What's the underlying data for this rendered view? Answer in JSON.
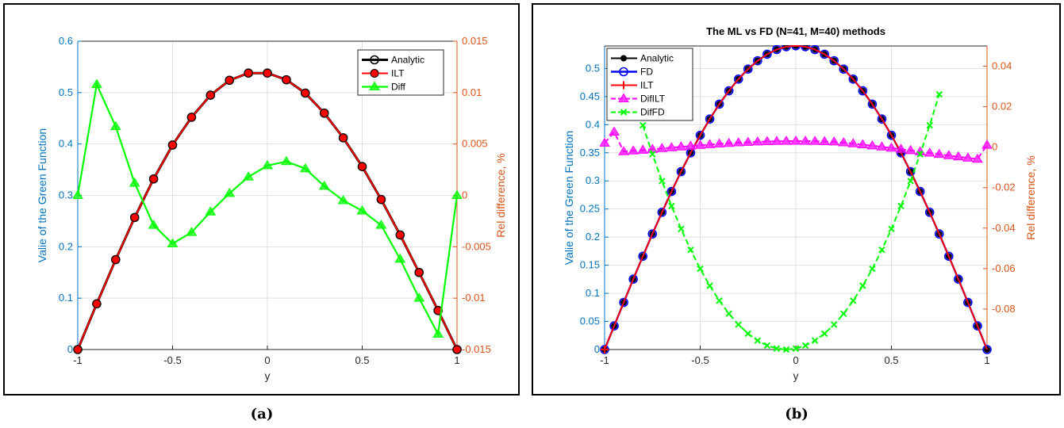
{
  "chart_data": [
    {
      "id": "a",
      "caption": "(a)",
      "type": "line",
      "title": "",
      "xlabel": "y",
      "ylabel": "Valie of the Green Function",
      "ylabel_right": "Rel difference, %",
      "xlim": [
        -1,
        1
      ],
      "ylim": [
        0,
        0.6
      ],
      "ylim_right": [
        -0.015,
        0.015
      ],
      "xticks": [
        "-1",
        "-0.5",
        "0",
        "0.5",
        "1"
      ],
      "yticks": [
        "0",
        "0.1",
        "0.2",
        "0.3",
        "0.4",
        "0.5",
        "0.6"
      ],
      "yticks_right": [
        "-0.015",
        "-0.01",
        "-0.005",
        "0",
        "0.005",
        "0.01",
        "0.015"
      ],
      "grid": true,
      "legend_position": "top-right",
      "colors": {
        "left_axis": "#0072bd",
        "right_axis": "#d95319",
        "analytic": "#000000",
        "ilt": "#ff0000",
        "diff": "#00ff00"
      },
      "series": [
        {
          "name": "Analytic",
          "axis": "left",
          "marker": "circle-open",
          "x": [
            -1,
            -0.9,
            -0.8,
            -0.7,
            -0.6,
            -0.5,
            -0.4,
            -0.3,
            -0.2,
            -0.1,
            0,
            0.1,
            0.2,
            0.3,
            0.4,
            0.5,
            0.6,
            0.7,
            0.8,
            0.9,
            1
          ],
          "y": [
            0,
            0.089,
            0.175,
            0.257,
            0.332,
            0.398,
            0.452,
            0.495,
            0.524,
            0.538,
            0.538,
            0.525,
            0.499,
            0.46,
            0.412,
            0.356,
            0.292,
            0.223,
            0.15,
            0.076,
            0
          ]
        },
        {
          "name": "ILT",
          "axis": "left",
          "marker": "circle-filled",
          "x": [
            -1,
            -0.9,
            -0.8,
            -0.7,
            -0.6,
            -0.5,
            -0.4,
            -0.3,
            -0.2,
            -0.1,
            0,
            0.1,
            0.2,
            0.3,
            0.4,
            0.5,
            0.6,
            0.7,
            0.8,
            0.9,
            1
          ],
          "y": [
            0,
            0.089,
            0.175,
            0.257,
            0.332,
            0.398,
            0.452,
            0.495,
            0.524,
            0.538,
            0.538,
            0.525,
            0.499,
            0.46,
            0.412,
            0.356,
            0.292,
            0.223,
            0.15,
            0.076,
            0
          ]
        },
        {
          "name": "Diff",
          "axis": "right",
          "marker": "triangle",
          "x": [
            -1,
            -0.9,
            -0.8,
            -0.7,
            -0.6,
            -0.5,
            -0.4,
            -0.3,
            -0.2,
            -0.1,
            0,
            0.1,
            0.2,
            0.3,
            0.4,
            0.5,
            0.6,
            0.7,
            0.8,
            0.9,
            1
          ],
          "y": [
            0,
            0.0108,
            0.0067,
            0.0012,
            -0.0029,
            -0.0047,
            -0.0036,
            -0.0016,
            0.0002,
            0.0018,
            0.0029,
            0.0033,
            0.0026,
            0.0009,
            -0.0005,
            -0.0015,
            -0.0029,
            -0.0062,
            -0.01,
            -0.0135,
            0
          ]
        }
      ]
    },
    {
      "id": "b",
      "caption": "(b)",
      "type": "line",
      "title": "The ML vs FD (N=41, M=40) methods",
      "xlabel": "y",
      "ylabel": "Valie of the Green Function",
      "ylabel_right": "Rel difference, %",
      "xlim": [
        -1,
        1
      ],
      "ylim": [
        0,
        0.54
      ],
      "ylim_right": [
        -0.1,
        0.05
      ],
      "xticks": [
        "-1",
        "-0.5",
        "0",
        "0.5",
        "1"
      ],
      "yticks": [
        "0",
        "0.05",
        "0.1",
        "0.15",
        "0.2",
        "0.25",
        "0.3",
        "0.35",
        "0.4",
        "0.45",
        "0.5"
      ],
      "yticks_right": [
        "-0.08",
        "-0.06",
        "-0.04",
        "-0.02",
        "0",
        "0.02",
        "0.04"
      ],
      "grid": true,
      "legend_position": "top-left",
      "colors": {
        "left_axis": "#0072bd",
        "right_axis": "#d95319",
        "analytic": "#000000",
        "fd": "#0000ff",
        "ilt": "#ff0000",
        "difilt": "#ff00ff",
        "diffd": "#00ff00"
      },
      "series": [
        {
          "name": "Analytic",
          "axis": "left",
          "marker": "dot"
        },
        {
          "name": "FD",
          "axis": "left",
          "marker": "circle-open"
        },
        {
          "name": "ILT",
          "axis": "left",
          "marker": "plus"
        },
        {
          "name": "DifILT",
          "axis": "right",
          "marker": "triangle",
          "dashed": true
        },
        {
          "name": "DifFD",
          "axis": "right",
          "marker": "cross",
          "dashed": true
        }
      ]
    }
  ]
}
